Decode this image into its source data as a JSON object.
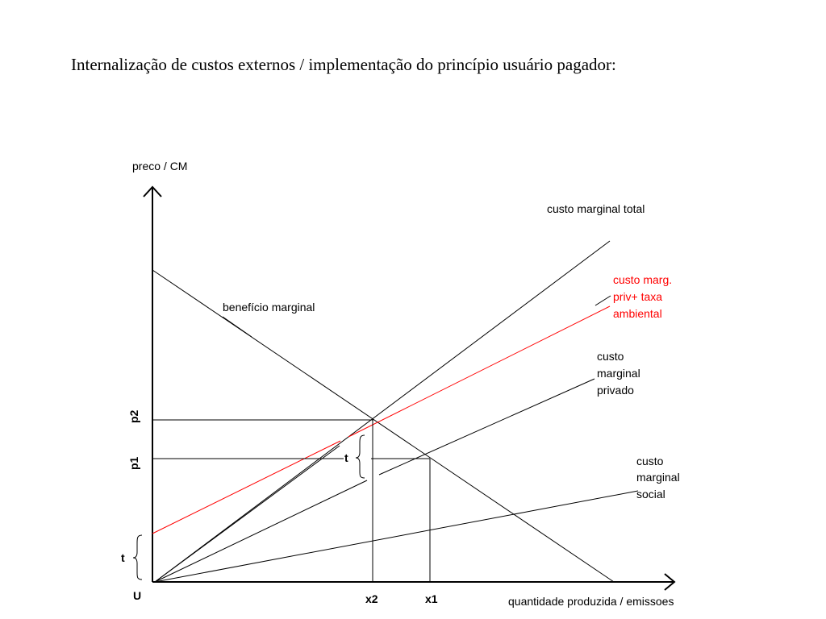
{
  "title": "Internalização de custos externos / implementação do princípio usuário pagador:",
  "axes": {
    "y_label": "preco / CM",
    "x_label": "quantidade produzida / emissoes",
    "origin": "U"
  },
  "ticks": {
    "x2": "x2",
    "x1": "x1",
    "p2": "p2",
    "p1": "p1",
    "t_axis": "t",
    "t_gap": "t"
  },
  "curves": {
    "total": "custo marginal total",
    "tax_line1": "custo marg.",
    "tax_line2": "priv+ taxa",
    "tax_line3": "ambiental",
    "private_line1": "custo",
    "private_line2": "marginal",
    "private_line3": "privado",
    "social_line1": "custo",
    "social_line2": "marginal",
    "social_line3": "social",
    "benefit": "benefício marginal"
  },
  "colors": {
    "line": "#000000",
    "tax_curve": "#ff0000"
  }
}
